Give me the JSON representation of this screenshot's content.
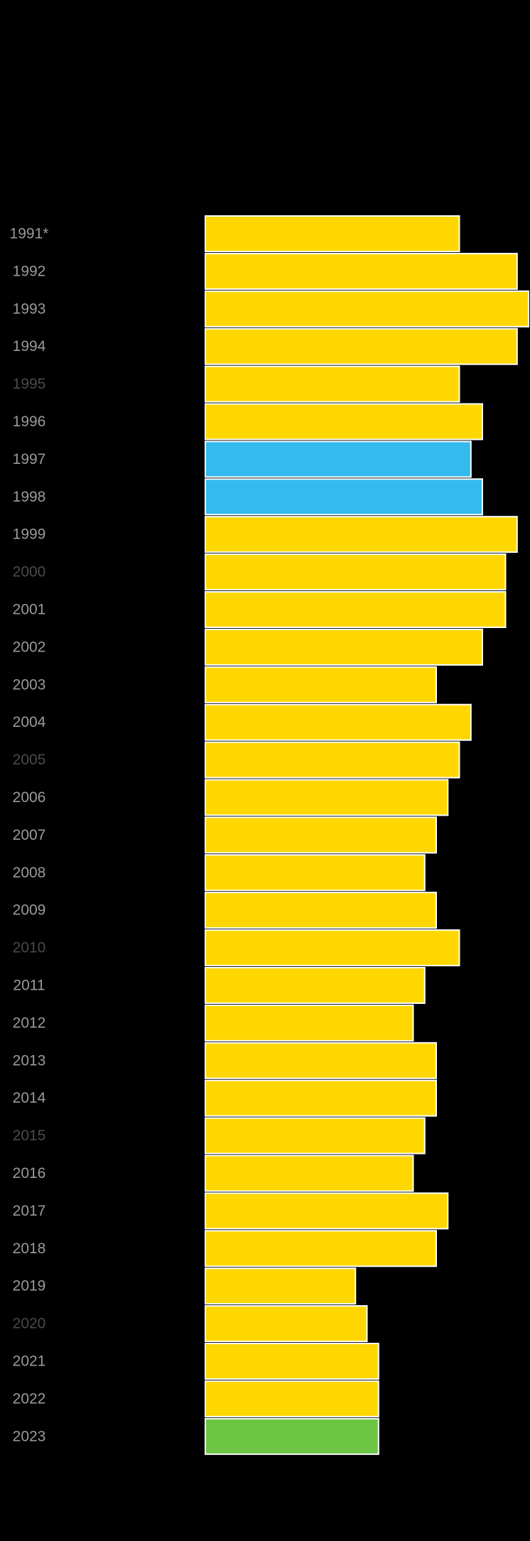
{
  "chart_data": {
    "type": "bar",
    "orientation": "horizontal",
    "categories": [
      "1991*",
      "1992",
      "1993",
      "1994",
      "1995",
      "1996",
      "1997",
      "1998",
      "1999",
      "2000",
      "2001",
      "2002",
      "2003",
      "2004",
      "2005",
      "2006",
      "2007",
      "2008",
      "2009",
      "2010",
      "2011",
      "2012",
      "2013",
      "2014",
      "2015",
      "2016",
      "2017",
      "2018",
      "2019",
      "2020",
      "2021",
      "2022",
      "2023"
    ],
    "values": [
      22,
      27,
      28,
      27,
      22,
      24,
      23,
      24,
      27,
      26,
      26,
      24,
      20,
      23,
      22,
      21,
      20,
      19,
      20,
      22,
      19,
      18,
      20,
      20,
      19,
      18,
      21,
      20,
      13,
      14,
      15,
      15,
      15
    ],
    "xlim": [
      0,
      28
    ],
    "grid": false,
    "legend": "none",
    "colors": {
      "default": "#FFD700",
      "highlight": "#33BBEE",
      "latest": "#6CC644",
      "label": "#9A9A9A",
      "label_dim": "#4A4A4A",
      "bar_border": "#FFFFFF",
      "background": "#000000"
    },
    "bar_colors": [
      "default",
      "default",
      "default",
      "default",
      "default",
      "default",
      "highlight",
      "highlight",
      "default",
      "default",
      "default",
      "default",
      "default",
      "default",
      "default",
      "default",
      "default",
      "default",
      "default",
      "default",
      "default",
      "default",
      "default",
      "default",
      "default",
      "default",
      "default",
      "default",
      "default",
      "default",
      "default",
      "default",
      "latest"
    ],
    "dim_labels": [
      "1995",
      "2000",
      "2005",
      "2010",
      "2015",
      "2020"
    ]
  }
}
